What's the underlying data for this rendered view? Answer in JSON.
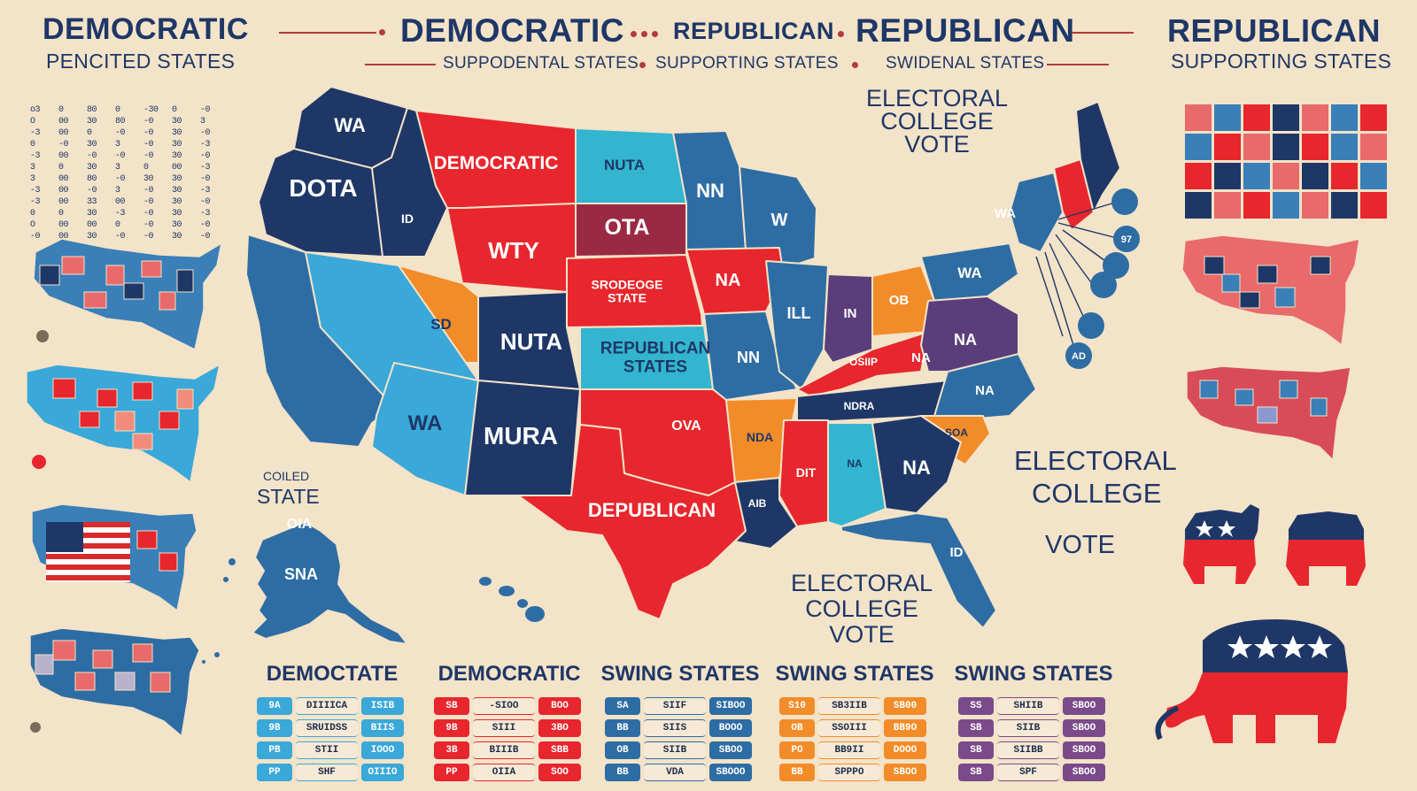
{
  "header": {
    "left_title": "DEMOCRATIC",
    "left_sub": "PENCITED STATES",
    "center_title_1": "DEMOCRATIC",
    "center_title_2": "REPUBLICAN",
    "center_title_3": "REPUBLICAN",
    "center_sub_1": "SUPPODENTAL STATES",
    "center_sub_2": "SUPPORTING STATES",
    "center_sub_3": "SWIDENAL STATES",
    "right_title": "REPUBLICAN",
    "right_sub": "SUPPORTING STATES"
  },
  "colors": {
    "dark_blue": "#1e3767",
    "mid_blue": "#2e6da4",
    "light_blue": "#3aa8d8",
    "red": "#e8262d",
    "dark_red": "#9a2a44",
    "orange": "#f28c28",
    "purple": "#5a3d7a",
    "teal": "#33b5cf",
    "background": "#f3e3c8"
  },
  "states": [
    {
      "label": "WA"
    },
    {
      "label": "DOTA"
    },
    {
      "label": "ID"
    },
    {
      "label": "DEMOCRATIC"
    },
    {
      "label": "NUTA"
    },
    {
      "label": "NN"
    },
    {
      "label": "W"
    },
    {
      "label": "OTA"
    },
    {
      "label": "WTY"
    },
    {
      "label": "OIA"
    },
    {
      "label": "SRODEOGE\nSTATE"
    },
    {
      "label": "NA"
    },
    {
      "label": "SD"
    },
    {
      "label": "NUTA"
    },
    {
      "label": "REPUBLICAN\nSTATES"
    },
    {
      "label": "NN"
    },
    {
      "label": "ILL"
    },
    {
      "label": "IN"
    },
    {
      "label": "OB"
    },
    {
      "label": "WA"
    },
    {
      "label": "NA"
    },
    {
      "label": "NA"
    },
    {
      "label": "WA"
    },
    {
      "label": "MURA"
    },
    {
      "label": "OVA"
    },
    {
      "label": "DEPUBLICAN"
    },
    {
      "label": "NDA"
    },
    {
      "label": "OSIIP"
    },
    {
      "label": "NDRA"
    },
    {
      "label": "NA"
    },
    {
      "label": "SOA"
    },
    {
      "label": "DIT"
    },
    {
      "label": "NA"
    },
    {
      "label": "NA"
    },
    {
      "label": "AIB"
    },
    {
      "label": "ID"
    },
    {
      "label": "SNA"
    },
    {
      "label": "WA"
    }
  ],
  "annotations": {
    "electoral_top": "ELECTORAL\nCOLLEGE\nVOTE",
    "electoral_right_1": "ELECTORAL",
    "electoral_right_2": "COLLEGE",
    "electoral_right_3": "VOTE",
    "electoral_bottom": "ELECTORAL\nCOLLEGE\nVOTE",
    "state_label_small": "COILED",
    "state_label": "STATE"
  },
  "northeast_badges": [
    "",
    "97",
    "",
    "",
    "",
    "AD"
  ],
  "tables": [
    {
      "title": "DEMOCTATE",
      "color": "#3aa8d8",
      "rows": [
        [
          "9A",
          "DIIIICA",
          "ISIB"
        ],
        [
          "9B",
          "SRUIDSS",
          "BIIS"
        ],
        [
          "PB",
          "STII",
          "IOOO"
        ],
        [
          "PP",
          "SHF",
          "OIIIO"
        ]
      ]
    },
    {
      "title": "DEMOCRATIC",
      "color": "#e8262d",
      "rows": [
        [
          "SB",
          "-SIOO",
          "BOO"
        ],
        [
          "9B",
          "SIII",
          "3BO"
        ],
        [
          "3B",
          "BIIIB",
          "SBB"
        ],
        [
          "PP",
          "OIIA",
          "SOO"
        ]
      ]
    },
    {
      "title": "SWING STATES",
      "color": "#2e6da4",
      "rows": [
        [
          "SA",
          "SIIF",
          "SIBOO"
        ],
        [
          "BB",
          "SIIS",
          "BOOO"
        ],
        [
          "OB",
          "SIIB",
          "SBOO"
        ],
        [
          "BB",
          "VDA",
          "SBOOO"
        ]
      ]
    },
    {
      "title": "SWING STATES",
      "color": "#f28c28",
      "rows": [
        [
          "S10",
          "SB3IIB",
          "SB00"
        ],
        [
          "OB",
          "SSOIII",
          "BB9O"
        ],
        [
          "PO",
          "BB9II",
          "DOOO"
        ],
        [
          "BB",
          "SPPPO",
          "SBOO"
        ]
      ]
    },
    {
      "title": "SWING STATES",
      "color": "#7a4a8a",
      "rows": [
        [
          "SS",
          "SHIIB",
          "SBOO"
        ],
        [
          "SB",
          "SIIB",
          "SBOO"
        ],
        [
          "SB",
          "SIIBB",
          "SBOO"
        ],
        [
          "SB",
          "SPF",
          "SBOO"
        ]
      ]
    }
  ],
  "left_legend_columns": [
    "o3\nO\n-3\n0\n-3\n3\n3\n-3\n-3\n0\nO\n-0",
    "0\n00\n00\n-0\n00\n0\n00\n00\n00\n0\n00\n00",
    "80\n30\n0\n30\n-0\n30\n80\n-0\n33\n30\n00\n30",
    "0\n80\n-0\n3\n-0\n3\n-0\n3\n00\n-3\n0\n-0",
    "-30\n-0\n-0\n-0\n-0\n0\n30\n-0\n-0\n-0\n-0\n-0",
    "0\n30\n30\n30\n30\n00\n30\n30\n30\n30\n30\n30",
    "-0\n3\n-0\n-3\n-0\n-3\n-0\n-3\n-0\n-3\n-0\n-0"
  ]
}
